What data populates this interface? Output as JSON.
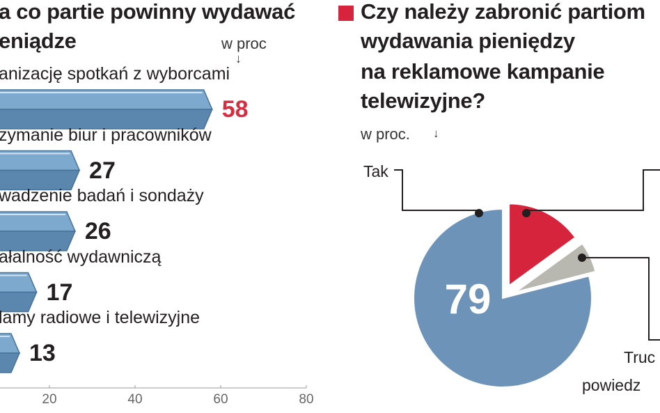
{
  "left_chart": {
    "title_lines": [
      "a co partie powinny wydawać",
      "eniądze"
    ],
    "unit": "w proc",
    "unit_arrow": "↓"
  },
  "right_chart": {
    "title_lines": [
      "Czy należy zabronić partiom",
      "wydawania pieniędzy",
      "na reklamowe kampanie",
      "telewizyjne?"
    ],
    "unit": "w proc.",
    "unit_arrow": "↓",
    "big_label": "79",
    "label_tak": "Tak",
    "label_trudno_1": "Truc",
    "label_trudno_2": "powiedz"
  },
  "colors": {
    "bar_blue": "#7ea9cf",
    "bar_blue_dark": "#5b86ad",
    "bar_highlight": "#d42e42",
    "pie_blue": "#6e93b8",
    "pie_red": "#d5243c",
    "pie_gray": "#b8b8b0",
    "text": "#231f20"
  },
  "chart_data": [
    {
      "type": "bar",
      "orientation": "horizontal",
      "title": "a co partie powinny wydawać eniądze",
      "categories": [
        "anizację spotkań z wyborcami",
        "zymanie biur i pracowników",
        "wadzenie badań i sondaży",
        "ałalność wydawniczą",
        "lamy radiowe i telewizyjne"
      ],
      "values": [
        58,
        27,
        26,
        17,
        13
      ],
      "value_labels": [
        "58",
        "27",
        "26",
        "17",
        "13"
      ],
      "xlim": [
        0,
        80
      ],
      "x_ticks": [
        "20",
        "40",
        "60",
        "80"
      ],
      "highlight_index": 0
    },
    {
      "type": "pie",
      "title": "Czy należy zabronić partiom wydawania pieniędzy na reklamowe kampanie telewizyjne?",
      "slices": [
        {
          "label": "Tak",
          "value": 79
        },
        {
          "label": "",
          "value": 15
        },
        {
          "label": "Truc powiedz",
          "value": 6
        }
      ]
    }
  ]
}
